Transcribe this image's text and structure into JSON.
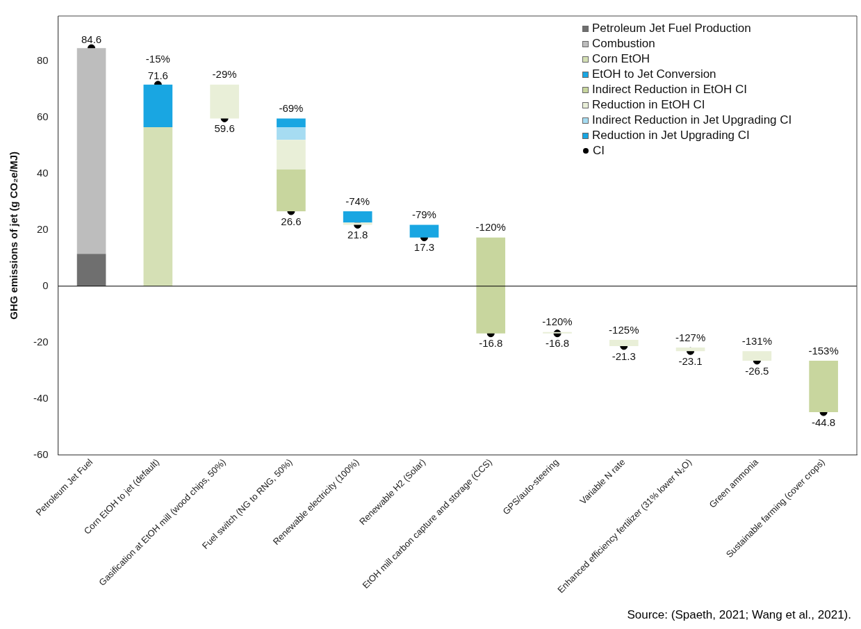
{
  "chart_data": {
    "type": "bar",
    "ylabel": "GHG emissions of jet (g CO₂e/MJ)",
    "categories": [
      "Petroleum Jet Fuel",
      "Corn EtOH to jet (default)",
      "Gasification at EtOH mill (wood chips, 50%)",
      "Fuel switch (NG to RNG, 50%)",
      "Renewable electricity (100%)",
      "Renewable H2 (Solar)",
      "EtOH mill carbon capture and storage (CCS)",
      "GPS/auto-steering",
      "Variable N rate",
      "Enhanced efficiency fertilizer (31% lower N₂O)",
      "Green ammonia",
      "Sustainable farming (cover crops)"
    ],
    "series": [
      {
        "name": "Petroleum Jet Fuel Production",
        "color": "#6f6f6f",
        "values": [
          11.5,
          null,
          null,
          null,
          null,
          null,
          null,
          null,
          null,
          null,
          null,
          null
        ]
      },
      {
        "name": "Combustion",
        "color": "#bdbdbd",
        "base": [
          11.5,
          null,
          null,
          null,
          null,
          null,
          null,
          null,
          null,
          null,
          null,
          null
        ],
        "values": [
          73.1,
          null,
          null,
          null,
          null,
          null,
          null,
          null,
          null,
          null,
          null,
          null
        ]
      },
      {
        "name": "Corn EtOH",
        "color": "#d5e0b5",
        "values": [
          null,
          56.5,
          null,
          null,
          null,
          null,
          null,
          null,
          null,
          null,
          null,
          null
        ]
      },
      {
        "name": "EtOH to Jet Conversion",
        "color": "#19a6e2",
        "base": [
          null,
          56.5,
          null,
          null,
          null,
          null,
          null,
          null,
          null,
          null,
          null,
          null
        ],
        "values": [
          null,
          15.1,
          null,
          null,
          null,
          null,
          null,
          null,
          null,
          null,
          null,
          null
        ]
      },
      {
        "name": "Indirect Reduction in EtOH CI",
        "color": "#c8d69e",
        "base": [
          null,
          null,
          null,
          26.6,
          null,
          null,
          -16.8,
          null,
          null,
          null,
          null,
          -44.8
        ],
        "values": [
          null,
          null,
          null,
          14.9,
          null,
          null,
          34.1,
          null,
          null,
          null,
          null,
          18.3
        ]
      },
      {
        "name": "Reduction in EtOH CI",
        "color": "#e9efd8",
        "base": [
          null,
          null,
          59.6,
          41.5,
          21.8,
          null,
          null,
          -16.8,
          -21.3,
          -23.1,
          -26.5,
          null
        ],
        "values": [
          null,
          null,
          12.0,
          10.5,
          0.8,
          null,
          null,
          0.5,
          2.2,
          1.3,
          3.4,
          null
        ]
      },
      {
        "name": "Indirect Reduction in Jet Upgrading CI",
        "color": "#a6dcf2",
        "base": [
          null,
          null,
          null,
          52.0,
          null,
          null,
          null,
          null,
          null,
          null,
          null,
          null
        ],
        "values": [
          null,
          null,
          null,
          4.5,
          null,
          null,
          null,
          null,
          null,
          null,
          null,
          null
        ]
      },
      {
        "name": "Reduction in Jet Upgrading CI",
        "color": "#19a6e2",
        "base": [
          null,
          null,
          null,
          56.5,
          22.6,
          17.3,
          null,
          null,
          null,
          null,
          null,
          null
        ],
        "values": [
          null,
          null,
          null,
          3.1,
          4.0,
          4.5,
          null,
          null,
          null,
          null,
          null,
          null
        ]
      },
      {
        "name": "CI",
        "type": "scatter",
        "color": "#000000",
        "marker": "circle",
        "x": [
          "Petroleum Jet Fuel",
          "Corn EtOH to jet (default)",
          "Gasification at EtOH mill (wood chips, 50%)",
          "Fuel switch (NG to RNG, 50%)",
          "Renewable electricity (100%)",
          "Renewable H2 (Solar)",
          "EtOH mill carbon capture and storage (CCS)",
          "GPS/auto-steering",
          "Variable N rate",
          "Enhanced efficiency fertilizer (31% lower N₂O)",
          "Green ammonia",
          "Sustainable farming (cover crops)"
        ],
        "values": [
          84.6,
          71.6,
          59.6,
          26.6,
          21.8,
          17.3,
          -16.8,
          -16.8,
          -21.3,
          -23.1,
          -26.5,
          -44.8
        ],
        "value_labels": [
          "84.6",
          "71.6",
          "59.6",
          "26.6",
          "21.8",
          "17.3",
          "-16.8",
          "-16.8",
          "-21.3",
          "-23.1",
          "-26.5",
          "-44.8"
        ]
      }
    ],
    "ylim": [
      -60,
      96
    ],
    "yticks": [
      -60,
      -40,
      -20,
      0,
      20,
      40,
      60,
      80
    ],
    "ref_lines": [
      {
        "axis": "y",
        "value": 0,
        "color": "#000000"
      }
    ],
    "legend": "top right",
    "annotations": [
      {
        "text": "-15%",
        "x": "Corn EtOH to jet (default)",
        "y": 71.6
      },
      {
        "text": "-29%",
        "x": "Gasification at EtOH mill (wood chips, 50%)",
        "y": 71.6
      },
      {
        "text": "-69%",
        "x": "Fuel switch (NG to RNG, 50%)",
        "y": 59.6
      },
      {
        "text": "-74%",
        "x": "Renewable electricity (100%)",
        "y": 26.6
      },
      {
        "text": "-79%",
        "x": "Renewable H2 (Solar)",
        "y": 21.8
      },
      {
        "text": "-120%",
        "x": "EtOH mill carbon capture and storage (CCS)",
        "y": 17.3
      },
      {
        "text": "-120%",
        "x": "GPS/auto-steering",
        "y": -16.3
      },
      {
        "text": "-125%",
        "x": "Variable N rate",
        "y": -19.1
      },
      {
        "text": "-127%",
        "x": "Enhanced efficiency fertilizer (31% lower N₂O)",
        "y": -21.8
      },
      {
        "text": "-131%",
        "x": "Green ammonia",
        "y": -23.1
      },
      {
        "text": "-153%",
        "x": "Sustainable farming (cover crops)",
        "y": -26.5
      },
      "Source: (Spaeth, 2021; Wang et al., 2021)."
    ]
  }
}
